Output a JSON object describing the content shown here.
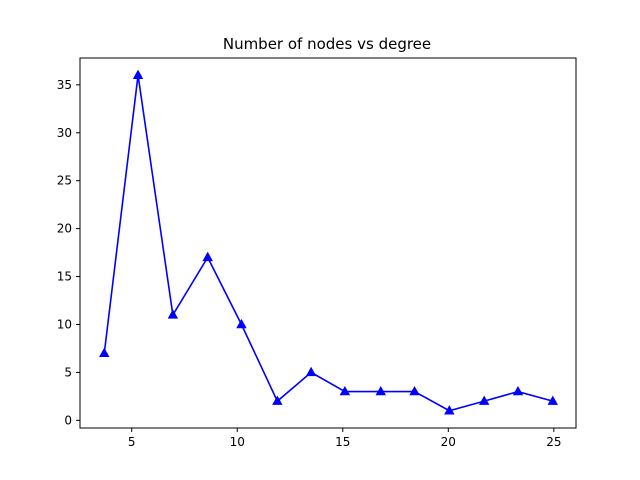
{
  "chart_data": {
    "type": "line",
    "title": "Number of nodes vs degree",
    "xlabel": "",
    "ylabel": "",
    "xlim": [
      2.55,
      26.05
    ],
    "ylim": [
      -0.8,
      37.8
    ],
    "xticks": [
      5,
      10,
      15,
      20,
      25
    ],
    "yticks": [
      0,
      5,
      10,
      15,
      20,
      25,
      30,
      35
    ],
    "grid": false,
    "marker": "triangle",
    "color": "#0000ff",
    "series": [
      {
        "x": [
          3.7,
          5.3,
          6.95,
          8.6,
          10.2,
          11.9,
          13.5,
          15.1,
          16.8,
          18.4,
          20.05,
          21.7,
          23.3,
          24.95
        ],
        "y": [
          7,
          36,
          11,
          17,
          10,
          2,
          5,
          3,
          3,
          3,
          1,
          2,
          3,
          2
        ]
      }
    ]
  }
}
